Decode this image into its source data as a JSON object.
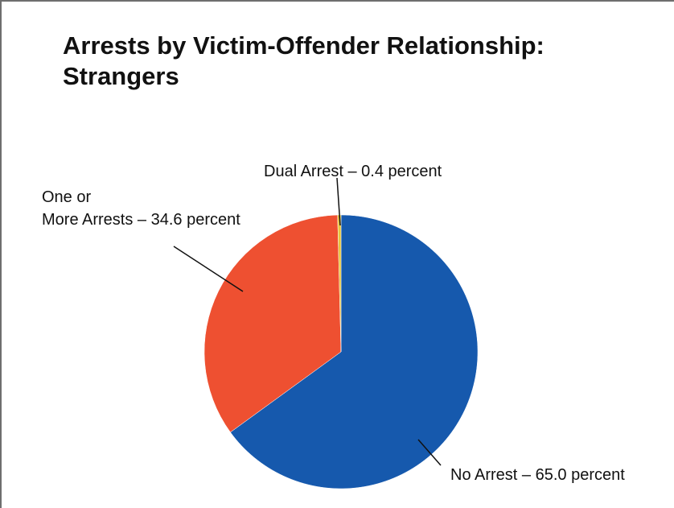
{
  "chart_data": {
    "type": "pie",
    "title_line1": "Arrests by Victim-Offender Relationship:",
    "title_line2": "Strangers",
    "slices": [
      {
        "label": "No Arrest – 65.0 percent",
        "value": 65.0,
        "color": "#1659ad"
      },
      {
        "label": "One or More Arrests – 34.6 percent",
        "value": 34.6,
        "color": "#ee5031"
      },
      {
        "label": "Dual Arrest – 0.4 percent",
        "value": 0.4,
        "color": "#e8c53c"
      }
    ],
    "label_lines": {
      "no_arrest": "No Arrest – 65.0 percent",
      "one_or_more_1": "One or",
      "one_or_more_2": "More Arrests – 34.6 percent",
      "dual": "Dual Arrest – 0.4 percent"
    }
  }
}
